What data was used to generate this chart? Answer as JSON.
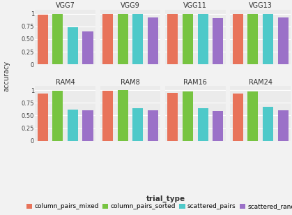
{
  "subplots": [
    {
      "title": "VGG7",
      "values": [
        0.98,
        1.0,
        0.73,
        0.65
      ]
    },
    {
      "title": "VGG9",
      "values": [
        0.99,
        1.0,
        1.0,
        0.92
      ]
    },
    {
      "title": "VGG11",
      "values": [
        1.0,
        1.0,
        0.99,
        0.91
      ]
    },
    {
      "title": "VGG13",
      "values": [
        1.0,
        1.0,
        1.0,
        0.93
      ]
    },
    {
      "title": "RAM4",
      "values": [
        0.93,
        0.99,
        0.62,
        0.6
      ]
    },
    {
      "title": "RAM8",
      "values": [
        0.99,
        1.0,
        0.65,
        0.6
      ]
    },
    {
      "title": "RAM16",
      "values": [
        0.95,
        0.98,
        0.65,
        0.59
      ]
    },
    {
      "title": "RAM24",
      "values": [
        0.93,
        0.97,
        0.67,
        0.61
      ]
    }
  ],
  "trial_types": [
    "column_pairs_mixed",
    "column_pairs_sorted",
    "scattered_pairs",
    "scattered_random"
  ],
  "colors": [
    "#E8735A",
    "#77C441",
    "#4EC9C9",
    "#9B71C8"
  ],
  "ylabel": "accuracy",
  "ylim": [
    0,
    1.08
  ],
  "yticks": [
    0,
    0.25,
    0.5,
    0.75,
    1.0
  ],
  "ytick_labels": [
    "0",
    "0.25",
    "0.50",
    "0.75",
    "1"
  ],
  "legend_title": "trial_type",
  "subplot_bg": "#EBEBEB",
  "fig_bg": "#F2F2F2",
  "grid_color": "#FFFFFF",
  "title_fontsize": 7,
  "axis_fontsize": 6,
  "legend_fontsize": 6.5,
  "ylabel_fontsize": 7
}
